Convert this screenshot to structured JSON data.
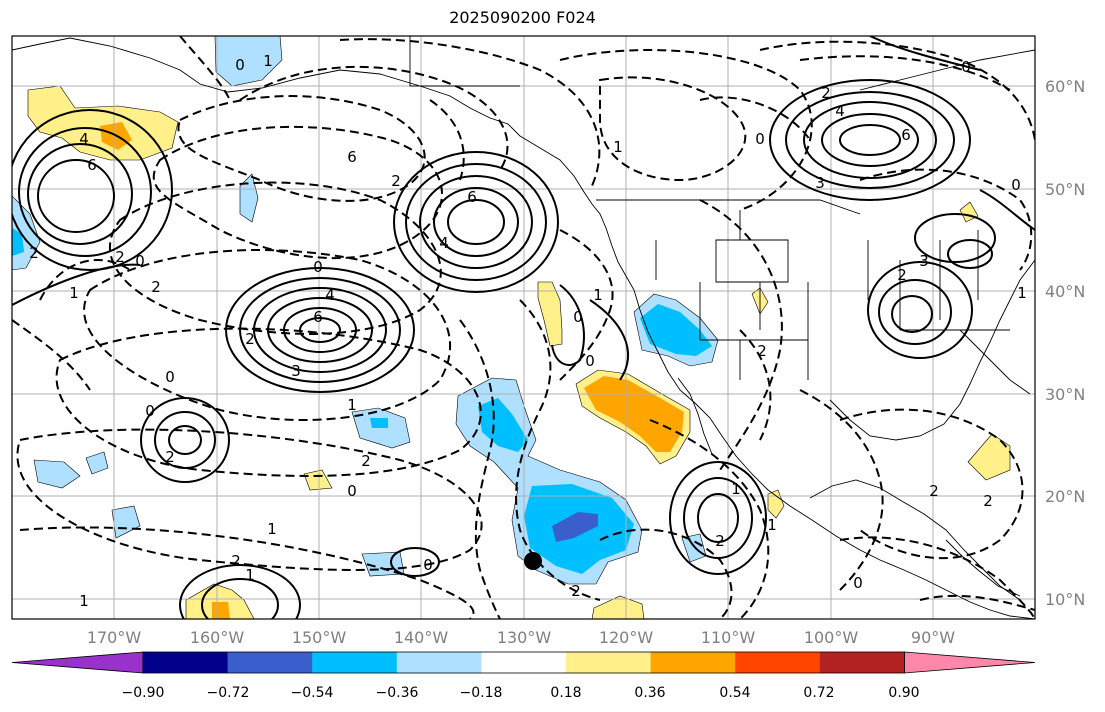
{
  "title": "2025090200 F024",
  "lat_labels": [
    "60°N",
    "50°N",
    "40°N",
    "30°N",
    "20°N",
    "10°N"
  ],
  "lon_labels": [
    "170°W",
    "160°W",
    "150°W",
    "140°W",
    "130°W",
    "120°W",
    "110°W",
    "100°W",
    "90°W"
  ],
  "colorbar": {
    "tick_labels": [
      "−0.90",
      "−0.72",
      "−0.54",
      "−0.36",
      "−0.18",
      "0.18",
      "0.36",
      "0.54",
      "0.72",
      "0.90"
    ],
    "colors": [
      "#9932cc",
      "#00008b",
      "#3a5fcd",
      "#00bfff",
      "#b0e0ff",
      "#ffffff",
      "#fff08a",
      "#ffa500",
      "#ff4500",
      "#b22222",
      "#ff88aa"
    ]
  },
  "fill_colors": {
    "light_blue": "#b0e0ff",
    "mid_blue": "#00bfff",
    "dark_blue": "#3a5fcd",
    "light_yellow": "#fff08a",
    "orange": "#ffa500"
  },
  "contour_labels": [
    "0",
    "1",
    "4",
    "6",
    "6",
    "2",
    "1",
    "2",
    "0",
    "4",
    "6",
    "2",
    "3",
    "6",
    "4",
    "2",
    "0",
    "2",
    "1",
    "2",
    "0",
    "1",
    "2",
    "1",
    "0",
    "0",
    "2",
    "0",
    "4",
    "6",
    "3",
    "2",
    "0",
    "2",
    "3",
    "2",
    "1",
    "2",
    "1",
    "2",
    "0",
    "0",
    "1",
    "1",
    "0",
    "2",
    "1",
    "0",
    "0",
    "1",
    "2"
  ],
  "marker": {
    "color": "#000000"
  }
}
